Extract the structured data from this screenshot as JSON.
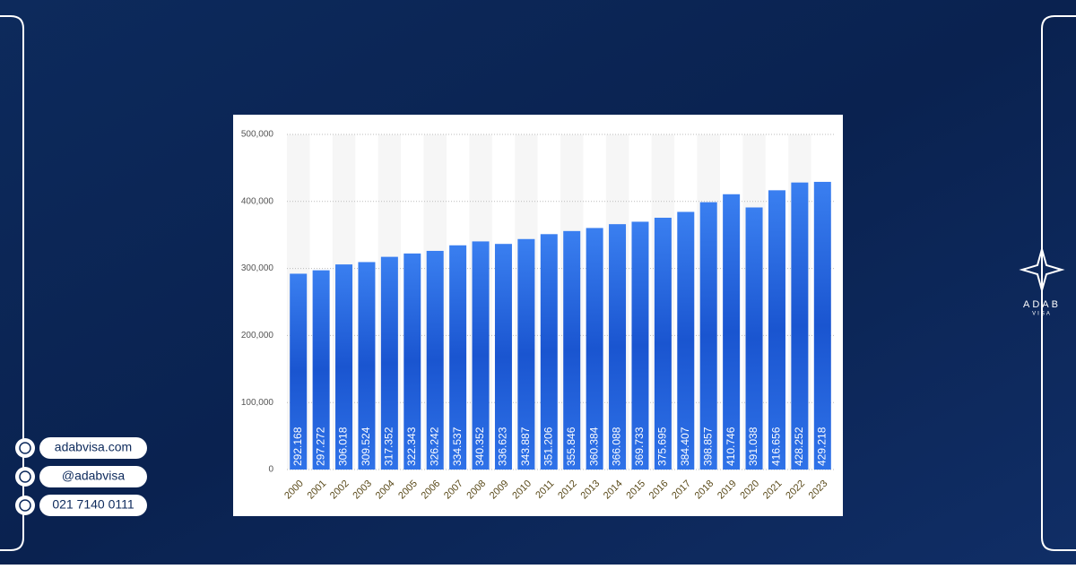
{
  "brand": {
    "name": "ADAB",
    "tagline": "VISA"
  },
  "contacts": [
    "adabvisa.com",
    "@adabvisa",
    "021 7140 0111"
  ],
  "chart_data": {
    "type": "bar",
    "categories": [
      "2000",
      "2001",
      "2002",
      "2003",
      "2004",
      "2005",
      "2006",
      "2007",
      "2008",
      "2009",
      "2010",
      "2011",
      "2012",
      "2013",
      "2014",
      "2015",
      "2016",
      "2017",
      "2018",
      "2019",
      "2020",
      "2021",
      "2022",
      "2023"
    ],
    "values": [
      292168,
      297272,
      306018,
      309524,
      317352,
      322343,
      326242,
      334537,
      340352,
      336623,
      343887,
      351206,
      355846,
      360384,
      366088,
      369733,
      375695,
      384407,
      398857,
      410746,
      391038,
      416656,
      428252,
      429218
    ],
    "value_labels": [
      "292.168",
      "297.272",
      "306.018",
      "309.524",
      "317.352",
      "322.343",
      "326.242",
      "334.537",
      "340.352",
      "336.623",
      "343.887",
      "351.206",
      "355.846",
      "360.384",
      "366.088",
      "369.733",
      "375.695",
      "384.407",
      "398.857",
      "410.746",
      "391.038",
      "416.656",
      "428.252",
      "429.218"
    ],
    "color": "#2f6fe0",
    "ylim": [
      0,
      500000
    ],
    "yticks": [
      0,
      {
        "value": 100000,
        "label": "100,000"
      },
      {
        "value": 200000,
        "label": "200,000"
      },
      {
        "value": 300000,
        "label": "300,000"
      },
      {
        "value": 400000,
        "label": "400,000"
      },
      {
        "value": 500000,
        "label": "500,000"
      }
    ],
    "grid": true
  }
}
